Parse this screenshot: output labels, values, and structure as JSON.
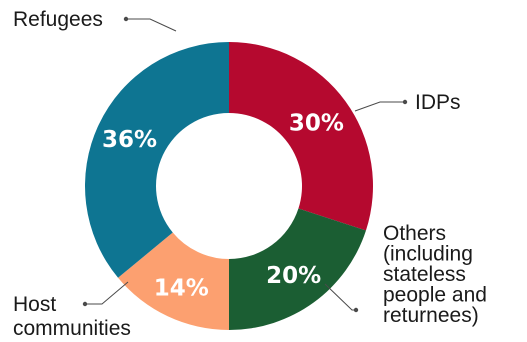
{
  "chart_data": {
    "type": "pie",
    "title": "",
    "categories": [
      "Refugees",
      "IDPs",
      "Others (including stateless people and returnees)",
      "Host communities"
    ],
    "values": [
      30,
      20,
      14,
      36
    ],
    "value_labels": [
      "30%",
      "20%",
      "14%",
      "36%"
    ],
    "legend_lines": [
      [
        "Refugees"
      ],
      [
        "IDPs"
      ],
      [
        "Others",
        "(including",
        "stateless",
        "people and",
        "returnees)"
      ],
      [
        "Host",
        "communities"
      ]
    ],
    "colors": [
      "#b5092f",
      "#1b5e33",
      "#fca070",
      "#0e7592"
    ],
    "style": "donut",
    "start": "top",
    "direction": "clockwise"
  }
}
